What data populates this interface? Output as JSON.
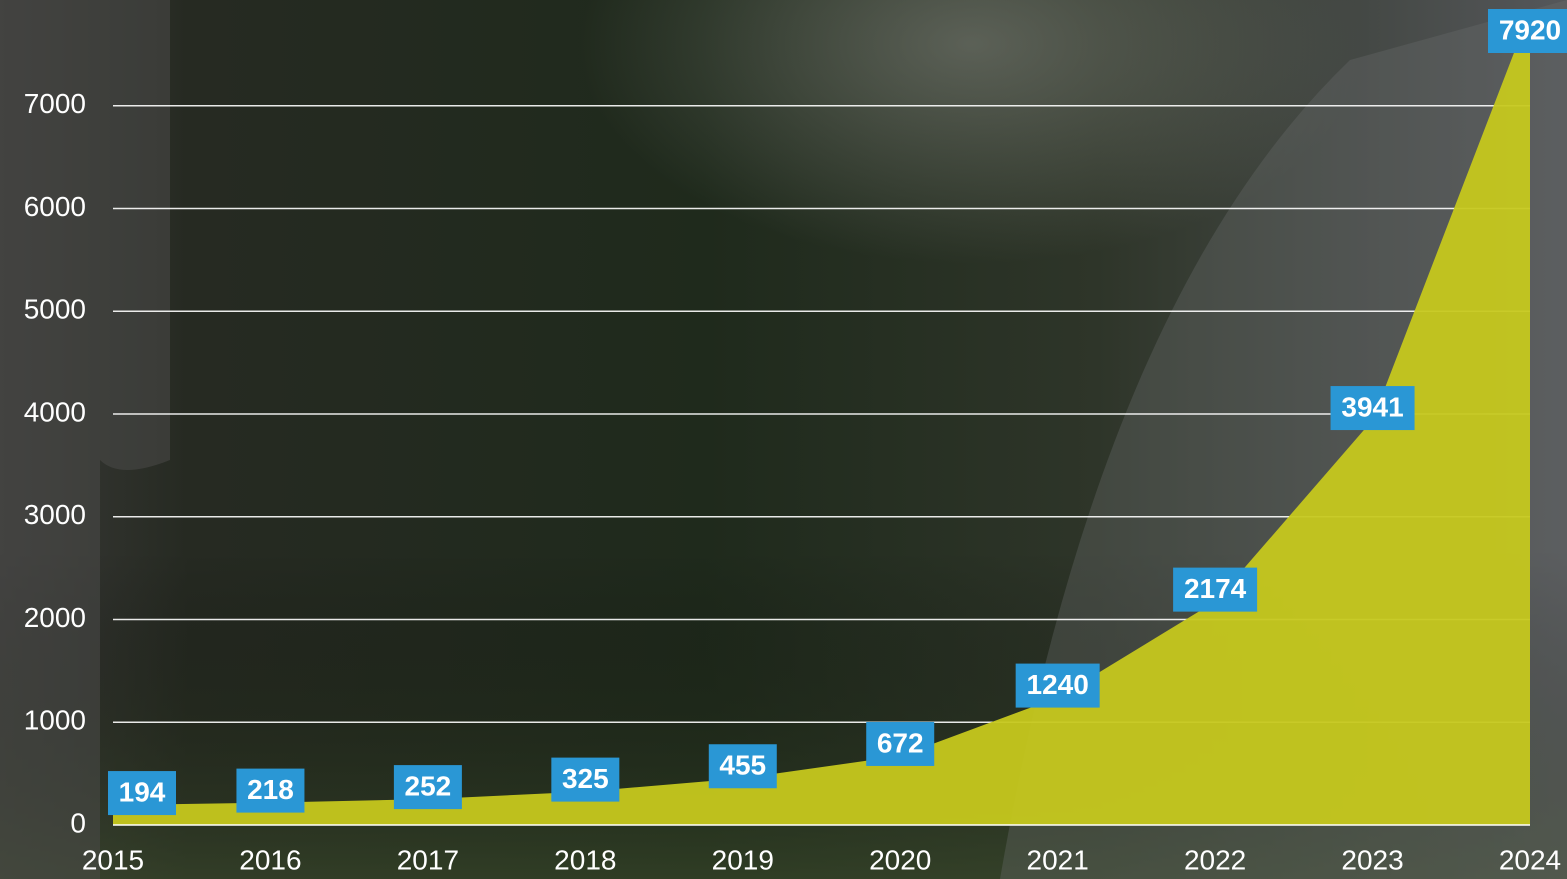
{
  "chart_data": {
    "type": "area",
    "x": [
      2015,
      2016,
      2017,
      2018,
      2019,
      2020,
      2021,
      2022,
      2023,
      2024
    ],
    "values": [
      194,
      218,
      252,
      325,
      455,
      672,
      1240,
      2174,
      3941,
      7920
    ],
    "color": "#c6c81e",
    "label_color": "#2a97d5",
    "xlim": [
      2015,
      2024
    ],
    "xticks": [
      2015,
      2016,
      2017,
      2018,
      2019,
      2020,
      2021,
      2022,
      2023,
      2024
    ],
    "ylim": [
      0,
      8000
    ],
    "yticks": [
      0,
      1000,
      2000,
      3000,
      4000,
      5000,
      6000,
      7000
    ],
    "grid": true
  }
}
